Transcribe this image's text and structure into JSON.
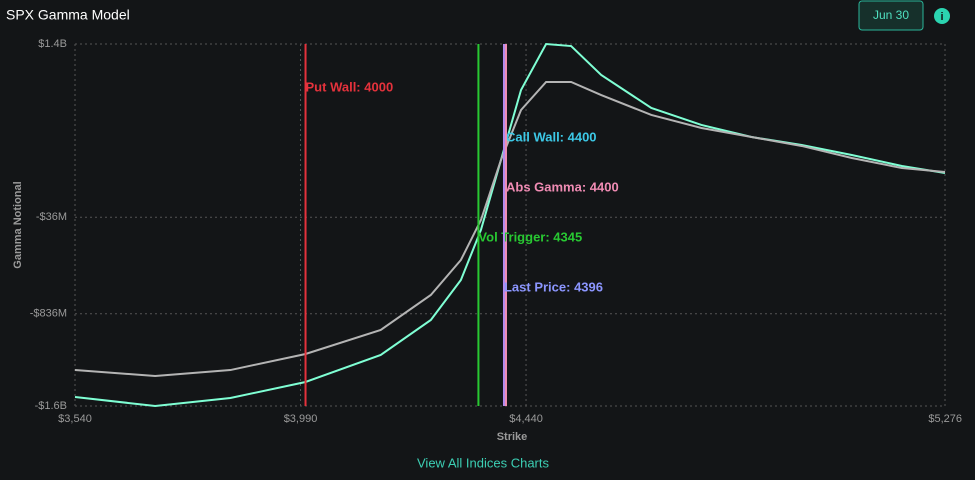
{
  "header": {
    "title": "SPX Gamma Model",
    "date_button": "Jun 30"
  },
  "chart_data": {
    "type": "line",
    "x_label": "Strike",
    "y_label": "Gamma Notional",
    "x": [
      3540,
      3700,
      3850,
      4000,
      4150,
      4250,
      4310,
      4350,
      4390,
      4430,
      4480,
      4530,
      4590,
      4690,
      4790,
      4890,
      4990,
      5090,
      5190,
      5276
    ],
    "series": [
      {
        "color": "#7fffd4",
        "values": [
          -1525,
          -1600,
          -1534,
          -1401,
          -1177,
          -887,
          -556,
          -141,
          439,
          1019,
          1400,
          1383,
          1143,
          870,
          729,
          629,
          563,
          480,
          389,
          331
        ]
      },
      {
        "color": "#b4b4b4",
        "values": [
          -1302,
          -1351,
          -1302,
          -1169,
          -970,
          -680,
          -390,
          -59,
          439,
          853,
          1085,
          1085,
          977,
          812,
          704,
          629,
          555,
          455,
          372,
          339
        ]
      }
    ],
    "xlim": [
      3540,
      5276
    ],
    "xticks": [
      {
        "value": 3540,
        "label": "$3,540"
      },
      {
        "value": 3990,
        "label": "$3,990"
      },
      {
        "value": 4440,
        "label": "$4,440"
      },
      {
        "value": 5276,
        "label": "$5,276"
      }
    ],
    "ylim": [
      -1600,
      1400
    ],
    "yticks": [
      {
        "value": 1400,
        "label": "$1.4B"
      },
      {
        "value": -36,
        "label": "-$36M"
      },
      {
        "value": -836,
        "label": "-$836M"
      },
      {
        "value": -1600,
        "label": "-$1.6B"
      }
    ],
    "grid": true,
    "annotations": [
      {
        "label": "Put Wall: 4000",
        "x": 4000,
        "color": "#e5323c",
        "text_color": "#e5323c"
      },
      {
        "label": "Call Wall: 4400",
        "x": 4400,
        "color": "#3cc8e6",
        "text_color": "#3cc8e6"
      },
      {
        "label": "Abs Gamma: 4400",
        "x": 4400,
        "color": "#f08cb4",
        "text_color": "#f08cb4"
      },
      {
        "label": "Vol Trigger: 4345",
        "x": 4345,
        "color": "#28c832",
        "text_color": "#28c832"
      },
      {
        "label": "Last Price: 4396",
        "x": 4396,
        "color": "#b48cf0",
        "text_color": "#8c96ff"
      }
    ]
  },
  "footer": {
    "link": "View All Indices Charts"
  }
}
